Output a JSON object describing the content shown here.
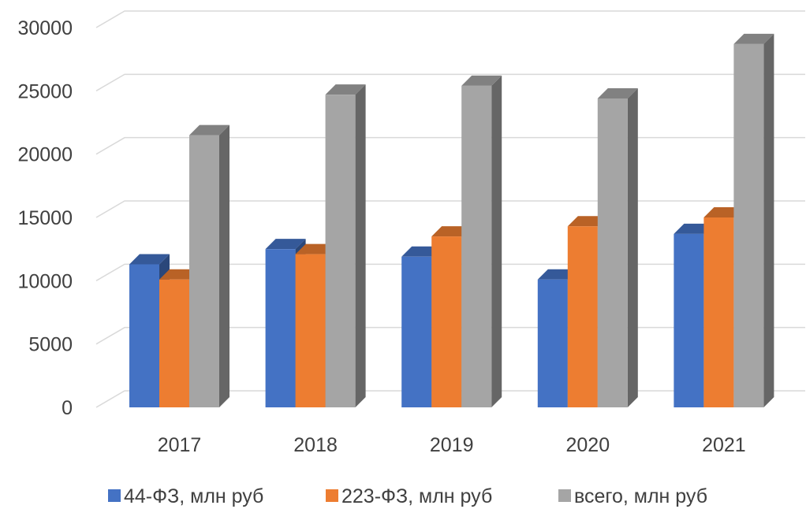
{
  "chart_data": {
    "type": "bar",
    "subtype": "3d-clustered-column",
    "categories": [
      "2017",
      "2018",
      "2019",
      "2020",
      "2021"
    ],
    "series": [
      {
        "name": "44-ФЗ, млн руб",
        "color": "#4472C4",
        "values": [
          11300,
          12500,
          11900,
          10100,
          13700
        ]
      },
      {
        "name": "223-ФЗ, млн руб",
        "color": "#ED7D31",
        "values": [
          10100,
          12100,
          13500,
          14300,
          15000
        ]
      },
      {
        "name": "всего, млн руб",
        "color": "#A5A5A5",
        "values": [
          21500,
          24700,
          25400,
          24400,
          28700
        ]
      }
    ],
    "y_ticks": [
      "0",
      "5000",
      "10000",
      "15000",
      "20000",
      "25000",
      "30000"
    ],
    "ylim": [
      0,
      30000
    ],
    "grid": true,
    "legend_position": "bottom"
  }
}
